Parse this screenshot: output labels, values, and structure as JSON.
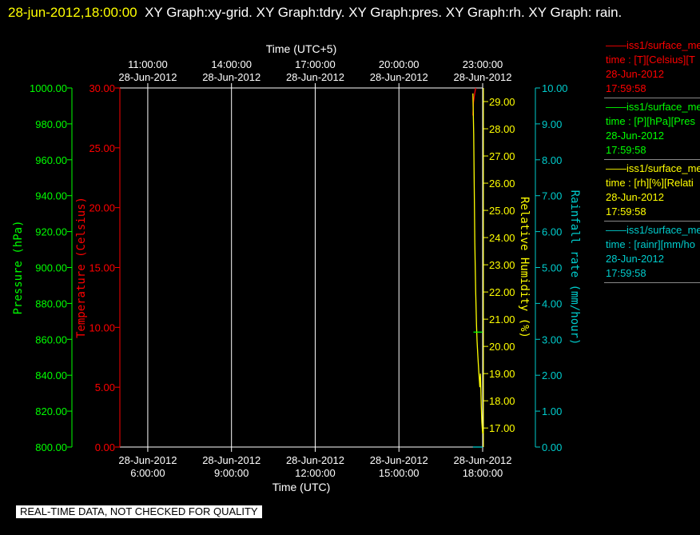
{
  "header": {
    "timestamp": "28-jun-2012,18:00:00",
    "title": "XY Graph:xy-grid.  XY Graph:tdry.  XY Graph:pres.  XY Graph:rh.  XY Graph: rain."
  },
  "chart_data": {
    "type": "line",
    "top_axis": {
      "label": "Time (UTC+5)",
      "ticks": [
        {
          "time": "11:00:00",
          "date": "28-Jun-2012"
        },
        {
          "time": "14:00:00",
          "date": "28-Jun-2012"
        },
        {
          "time": "17:00:00",
          "date": "28-Jun-2012"
        },
        {
          "time": "20:00:00",
          "date": "28-Jun-2012"
        },
        {
          "time": "23:00:00",
          "date": "28-Jun-2012"
        }
      ]
    },
    "bottom_axis": {
      "label": "Time (UTC)",
      "ticks": [
        {
          "date": "28-Jun-2012",
          "time": "6:00:00"
        },
        {
          "date": "28-Jun-2012",
          "time": "9:00:00"
        },
        {
          "date": "28-Jun-2012",
          "time": "12:00:00"
        },
        {
          "date": "28-Jun-2012",
          "time": "15:00:00"
        },
        {
          "date": "28-Jun-2012",
          "time": "18:00:00"
        }
      ],
      "range_hours_utc": [
        5.0,
        18.0
      ]
    },
    "axes": [
      {
        "id": "pres",
        "label": "Pressure (hPa)",
        "color": "#00ff00",
        "range": [
          800,
          1000
        ],
        "ticks": [
          "800.00",
          "820.00",
          "840.00",
          "860.00",
          "880.00",
          "900.00",
          "920.00",
          "940.00",
          "960.00",
          "980.00",
          "1000.00"
        ]
      },
      {
        "id": "tdry",
        "label": "Temperature (Celsius)",
        "color": "#ff0000",
        "range": [
          0,
          30
        ],
        "ticks": [
          "0.00",
          "5.00",
          "10.00",
          "15.00",
          "20.00",
          "25.00",
          "30.00"
        ]
      },
      {
        "id": "rh",
        "label": "Relative Humidity (%)",
        "color": "#ffff00",
        "range": [
          16.3,
          29.5
        ],
        "ticks": [
          "17.00",
          "18.00",
          "19.00",
          "20.00",
          "21.00",
          "22.00",
          "23.00",
          "24.00",
          "25.00",
          "26.00",
          "27.00",
          "28.00",
          "29.00"
        ]
      },
      {
        "id": "rain",
        "label": "Rainfall rate (mm/hour)",
        "color": "#00cccc",
        "range": [
          0,
          10
        ],
        "ticks": [
          "0.00",
          "1.00",
          "2.00",
          "3.00",
          "4.00",
          "5.00",
          "6.00",
          "7.00",
          "8.00",
          "9.00",
          "10.00"
        ]
      }
    ],
    "grid": true,
    "series": [
      {
        "name": "tdry",
        "axis": "tdry",
        "color": "#ff0000",
        "x": [
          17.65,
          17.67,
          17.7,
          17.72,
          17.75
        ],
        "y": [
          27.7,
          28.8,
          29.3,
          29.6,
          30.0
        ]
      },
      {
        "name": "rh",
        "axis": "rh",
        "color": "#ffff00",
        "x": [
          17.65,
          17.68,
          17.7,
          17.72,
          17.75,
          17.78,
          17.8,
          17.83,
          17.86,
          17.88,
          17.9,
          17.92,
          17.95,
          17.97,
          18.0
        ],
        "y": [
          29.3,
          27.8,
          25.8,
          23.8,
          22.0,
          20.8,
          20.2,
          19.6,
          19.1,
          18.8,
          18.5,
          19.0,
          17.8,
          17.2,
          16.8
        ]
      },
      {
        "name": "pres",
        "axis": "pres",
        "color": "#00ff00",
        "x": [
          17.67,
          18.0
        ],
        "y": [
          864.0,
          864.0
        ]
      },
      {
        "name": "rain",
        "axis": "rain",
        "color": "#00cccc",
        "x": [
          17.65,
          18.0
        ],
        "y": [
          0.0,
          0.0
        ]
      }
    ]
  },
  "legend": [
    {
      "line": "——iss1/surface_me",
      "param": "time : [T][Celsius][T",
      "date": "28-Jun-2012",
      "time": "17:59:58",
      "color": "#ff0000"
    },
    {
      "line": "——iss1/surface_me",
      "param": "time : [P][hPa][Pres",
      "date": "28-Jun-2012",
      "time": "17:59:58",
      "color": "#00ff00"
    },
    {
      "line": "——iss1/surface_me",
      "param": "time : [rh][%][Relati",
      "date": "28-Jun-2012",
      "time": "17:59:58",
      "color": "#ffff00"
    },
    {
      "line": "——iss1/surface_me",
      "param": "time : [rainr][mm/ho",
      "date": "28-Jun-2012",
      "time": "17:59:58",
      "color": "#00cccc"
    }
  ],
  "footer": {
    "quality_note": "REAL-TIME DATA, NOT CHECKED FOR QUALITY"
  }
}
